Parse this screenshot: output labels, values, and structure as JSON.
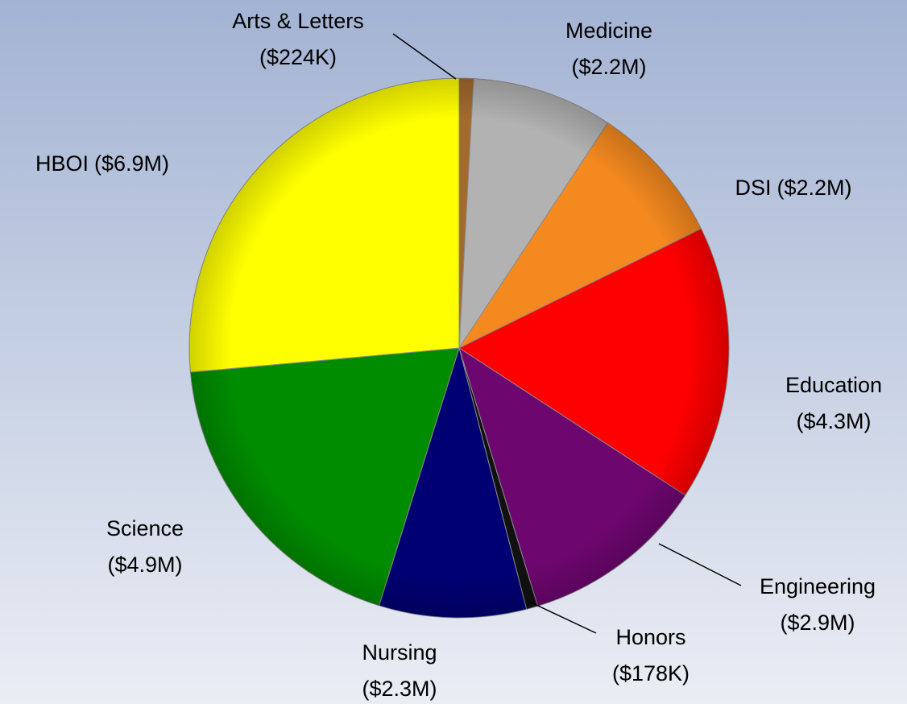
{
  "chart_data": {
    "type": "pie",
    "categories": [
      "Arts & Letters",
      "Medicine",
      "DSI",
      "Education",
      "Engineering",
      "Honors",
      "Nursing",
      "Science",
      "HBOI"
    ],
    "values": [
      224000,
      2200000,
      2200000,
      4300000,
      2900000,
      178000,
      2300000,
      4900000,
      6900000
    ],
    "value_labels": [
      "($224K)",
      "($2.2M)",
      "($2.2M)",
      "($4.3M)",
      "($2.9M)",
      "($178K)",
      "($2.3M)",
      "($4.9M)",
      "($6.9M)"
    ],
    "colors": [
      "#a36a2e",
      "#b2b2b2",
      "#f4891f",
      "#ff0000",
      "#6e0670",
      "#111111",
      "#000073",
      "#008c00",
      "#ffff00"
    ]
  }
}
